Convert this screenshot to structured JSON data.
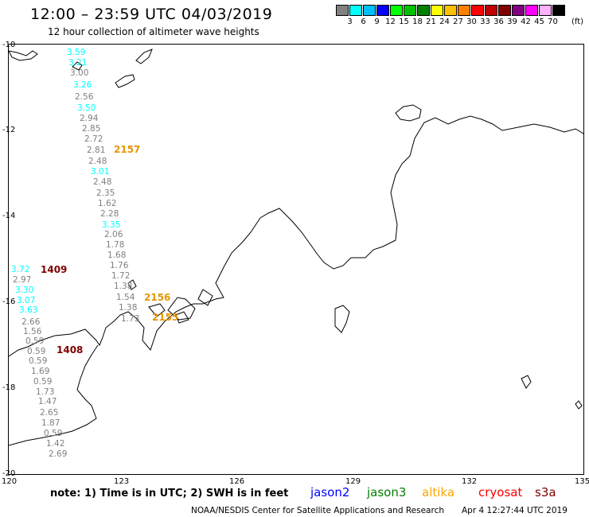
{
  "header": {
    "title": "12:00 – 23:59 UTC 04/03/2019",
    "subtitle": "12 hour collection of altimeter wave heights"
  },
  "color_scale": {
    "unit": "(ft)",
    "labels": [
      "3",
      "6",
      "9",
      "12",
      "15",
      "18",
      "21",
      "24",
      "27",
      "30",
      "33",
      "36",
      "39",
      "42",
      "45",
      "70"
    ],
    "colors": [
      "#808080",
      "#00ffff",
      "#00bfff",
      "#0000ff",
      "#00ff00",
      "#00c000",
      "#008000",
      "#ffff00",
      "#ffc000",
      "#ff8000",
      "#ff0000",
      "#c00000",
      "#800000",
      "#800080",
      "#ff00ff",
      "#ffb0ff",
      "#000000"
    ]
  },
  "axes": {
    "lat_labels": [
      "-10",
      "-12",
      "-14",
      "-16",
      "-18",
      "-20"
    ],
    "lon_labels": [
      "120",
      "123",
      "126",
      "129",
      "132",
      "135"
    ]
  },
  "observations": [
    {
      "v": "3.59",
      "c": "#00ffff"
    },
    {
      "v": "3.21",
      "c": "#00ffff"
    },
    {
      "v": "3.00",
      "c": "#808080"
    },
    {
      "v": "3.26",
      "c": "#00ffff"
    },
    {
      "v": "2.56",
      "c": "#808080"
    },
    {
      "v": "3.50",
      "c": "#00ffff"
    },
    {
      "v": "2.94",
      "c": "#808080"
    },
    {
      "v": "2.85",
      "c": "#808080"
    },
    {
      "v": "2.72",
      "c": "#808080"
    },
    {
      "v": "2.81",
      "c": "#808080"
    },
    {
      "v": "2.48",
      "c": "#808080"
    },
    {
      "v": "3.01",
      "c": "#00ffff"
    },
    {
      "v": "2.48",
      "c": "#808080"
    },
    {
      "v": "2.35",
      "c": "#808080"
    },
    {
      "v": "1.62",
      "c": "#808080"
    },
    {
      "v": "2.28",
      "c": "#808080"
    },
    {
      "v": "3.35",
      "c": "#00ffff"
    },
    {
      "v": "2.06",
      "c": "#808080"
    },
    {
      "v": "1.78",
      "c": "#808080"
    },
    {
      "v": "1.68",
      "c": "#808080"
    },
    {
      "v": "1.76",
      "c": "#808080"
    },
    {
      "v": "1.72",
      "c": "#808080"
    },
    {
      "v": "1.38",
      "c": "#808080"
    },
    {
      "v": "1.54",
      "c": "#808080"
    },
    {
      "v": "1.38",
      "c": "#808080"
    },
    {
      "v": "1.73",
      "c": "#808080"
    },
    {
      "v": "3.72",
      "c": "#00ffff"
    },
    {
      "v": "2.97",
      "c": "#808080"
    },
    {
      "v": "3.30",
      "c": "#00ffff"
    },
    {
      "v": "3.07",
      "c": "#00ffff"
    },
    {
      "v": "3.63",
      "c": "#00ffff"
    },
    {
      "v": "2.66",
      "c": "#808080"
    },
    {
      "v": "1.56",
      "c": "#808080"
    },
    {
      "v": "0.59",
      "c": "#808080"
    },
    {
      "v": "0.59",
      "c": "#808080"
    },
    {
      "v": "0.59",
      "c": "#808080"
    },
    {
      "v": "1.69",
      "c": "#808080"
    },
    {
      "v": "0.59",
      "c": "#808080"
    },
    {
      "v": "1.73",
      "c": "#808080"
    },
    {
      "v": "1.47",
      "c": "#808080"
    },
    {
      "v": "2.65",
      "c": "#808080"
    },
    {
      "v": "1.87",
      "c": "#808080"
    },
    {
      "v": "0.59",
      "c": "#808080"
    },
    {
      "v": "1.42",
      "c": "#808080"
    },
    {
      "v": "2.69",
      "c": "#808080"
    }
  ],
  "passes": [
    {
      "t": "2157",
      "c": "#e69500"
    },
    {
      "t": "1409",
      "c": "#800000"
    },
    {
      "t": "2156",
      "c": "#e69500"
    },
    {
      "t": "2155",
      "c": "#e69500"
    },
    {
      "t": "1408",
      "c": "#800000"
    }
  ],
  "note": "note: 1) Time is in UTC; 2) SWH is in feet",
  "satellites": [
    {
      "name": "jason2",
      "c": "#0000ff"
    },
    {
      "name": "jason3",
      "c": "#008000"
    },
    {
      "name": "altika",
      "c": "#ffa500"
    },
    {
      "name": "cryosat",
      "c": "#ff0000"
    },
    {
      "name": "s3a",
      "c": "#800000"
    }
  ],
  "footer": {
    "credit": "NOAA/NESDIS Center for Satellite Applications and Research",
    "timestamp": "Apr  4 12:27:44 UTC 2019"
  }
}
